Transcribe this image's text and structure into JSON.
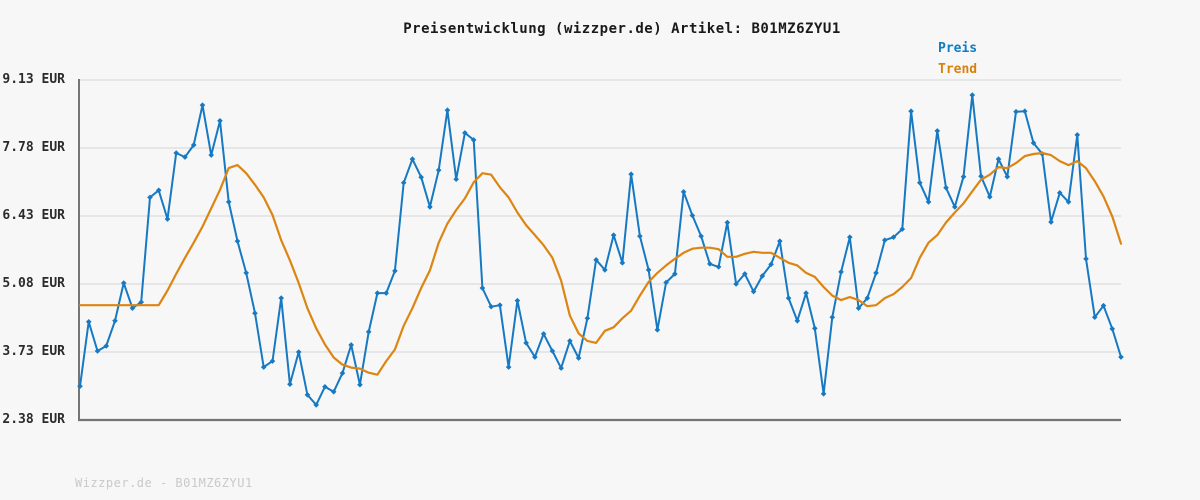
{
  "title": "Preisentwicklung (wizzper.de) Artikel: B01MZ6ZYU1",
  "legend": {
    "price_label": "Preis",
    "trend_label": "Trend"
  },
  "footer": "Wizzper.de - B01MZ6ZYU1",
  "colors": {
    "price_line": "#1679c2",
    "trend_line": "#dd8512",
    "grid": "#dcdcdc",
    "spine": "#757575",
    "background": "#f7f7f7"
  },
  "chart_data": {
    "type": "line",
    "title": "Preisentwicklung (wizzper.de) Artikel: B01MZ6ZYU1",
    "xlabel": "",
    "ylabel": "EUR",
    "ylim": [
      2.38,
      9.13
    ],
    "yticks": [
      9.13,
      7.78,
      6.43,
      5.08,
      3.73,
      2.38
    ],
    "ytick_labels": [
      "9.13 EUR",
      "7.78 EUR",
      "6.43 EUR",
      "5.08 EUR",
      "3.73 EUR",
      "2.38 EUR"
    ],
    "grid": true,
    "legend_position": "top-right",
    "x_axis_note": "time index, no tick labels shown",
    "series": [
      {
        "name": "Preis",
        "color": "#1679c2",
        "marker": "diamond",
        "values": [
          3.05,
          4.33,
          3.75,
          3.85,
          4.35,
          5.1,
          4.6,
          4.72,
          6.8,
          6.94,
          6.37,
          7.68,
          7.6,
          7.84,
          8.63,
          7.64,
          8.32,
          6.71,
          5.93,
          5.3,
          4.5,
          3.43,
          3.55,
          4.8,
          3.09,
          3.73,
          2.88,
          2.68,
          3.04,
          2.94,
          3.31,
          3.87,
          3.08,
          4.13,
          4.9,
          4.9,
          5.34,
          7.09,
          7.56,
          7.2,
          6.61,
          7.34,
          8.53,
          7.16,
          8.08,
          7.94,
          5.0,
          4.63,
          4.66,
          3.43,
          4.75,
          3.91,
          3.63,
          4.09,
          3.75,
          3.41,
          3.95,
          3.61,
          4.4,
          5.56,
          5.36,
          6.05,
          5.5,
          7.26,
          6.03,
          5.36,
          4.17,
          5.11,
          5.28,
          6.91,
          6.44,
          6.03,
          5.48,
          5.42,
          6.3,
          5.08,
          5.28,
          4.93,
          5.24,
          5.47,
          5.93,
          4.8,
          4.35,
          4.9,
          4.2,
          2.9,
          4.42,
          5.32,
          6.01,
          4.6,
          4.8,
          5.3,
          5.95,
          6.01,
          6.17,
          8.51,
          7.09,
          6.71,
          8.12,
          6.99,
          6.61,
          7.21,
          8.83,
          7.22,
          6.81,
          7.56,
          7.21,
          8.5,
          8.51,
          7.88,
          7.66,
          6.31,
          6.89,
          6.71,
          8.04,
          5.58,
          4.42,
          4.65,
          4.19,
          3.63
        ]
      },
      {
        "name": "Trend",
        "color": "#dd8512",
        "marker": "none",
        "values": [
          4.66,
          4.66,
          4.66,
          4.66,
          4.66,
          4.66,
          4.66,
          4.66,
          4.66,
          4.66,
          4.95,
          5.28,
          5.6,
          5.9,
          6.22,
          6.58,
          6.95,
          7.38,
          7.44,
          7.28,
          7.05,
          6.8,
          6.45,
          5.95,
          5.55,
          5.1,
          4.6,
          4.2,
          3.88,
          3.62,
          3.48,
          3.42,
          3.4,
          3.32,
          3.28,
          3.55,
          3.78,
          4.25,
          4.6,
          5.0,
          5.35,
          5.9,
          6.28,
          6.55,
          6.78,
          7.1,
          7.28,
          7.25,
          7.0,
          6.8,
          6.5,
          6.25,
          6.05,
          5.85,
          5.6,
          5.15,
          4.45,
          4.1,
          3.95,
          3.91,
          4.15,
          4.22,
          4.4,
          4.55,
          4.85,
          5.12,
          5.3,
          5.45,
          5.58,
          5.7,
          5.78,
          5.8,
          5.8,
          5.77,
          5.62,
          5.62,
          5.68,
          5.72,
          5.7,
          5.7,
          5.6,
          5.5,
          5.45,
          5.3,
          5.22,
          5.02,
          4.85,
          4.76,
          4.82,
          4.76,
          4.64,
          4.66,
          4.8,
          4.88,
          5.02,
          5.2,
          5.6,
          5.9,
          6.05,
          6.3,
          6.5,
          6.68,
          6.92,
          7.15,
          7.25,
          7.4,
          7.38,
          7.48,
          7.62,
          7.66,
          7.68,
          7.64,
          7.52,
          7.44,
          7.52,
          7.38,
          7.12,
          6.82,
          6.42,
          5.88
        ]
      }
    ]
  }
}
